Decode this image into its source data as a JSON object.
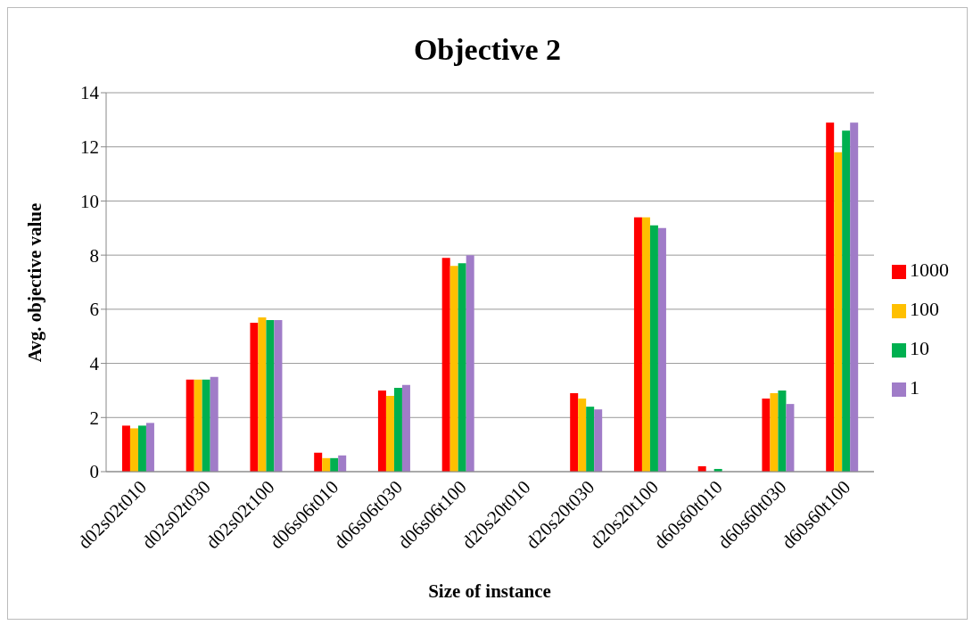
{
  "chart_data": {
    "type": "bar",
    "title": "Objective 2",
    "xlabel": "Size of instance",
    "ylabel": "Avg. objective value",
    "categories": [
      "d02s02t010",
      "d02s02t030",
      "d02s02t100",
      "d06s06t010",
      "d06s06t030",
      "d06s06t100",
      "d20s20t010",
      "d20s20t030",
      "d20s20t100",
      "d60s60t010",
      "d60s60t030",
      "d60s60t100"
    ],
    "series": [
      {
        "name": "1000",
        "color": "#ff0000",
        "values": [
          1.7,
          3.4,
          5.5,
          0.7,
          3.0,
          7.9,
          0,
          2.9,
          9.4,
          0.2,
          2.7,
          12.9
        ]
      },
      {
        "name": "100",
        "color": "#ffc000",
        "values": [
          1.6,
          3.4,
          5.7,
          0.5,
          2.8,
          7.6,
          0,
          2.7,
          9.4,
          0,
          2.9,
          11.8
        ]
      },
      {
        "name": "10",
        "color": "#00b050",
        "values": [
          1.7,
          3.4,
          5.6,
          0.5,
          3.1,
          7.7,
          0,
          2.4,
          9.1,
          0.1,
          3.0,
          12.6
        ]
      },
      {
        "name": "1",
        "color": "#a07cc8",
        "values": [
          1.8,
          3.5,
          5.6,
          0.6,
          3.2,
          8.0,
          0,
          2.3,
          9.0,
          0,
          2.5,
          12.9
        ]
      }
    ],
    "ylim": [
      0,
      14
    ],
    "yticks": [
      0,
      2,
      4,
      6,
      8,
      10,
      12,
      14
    ],
    "grid": "y",
    "legend": "right"
  }
}
